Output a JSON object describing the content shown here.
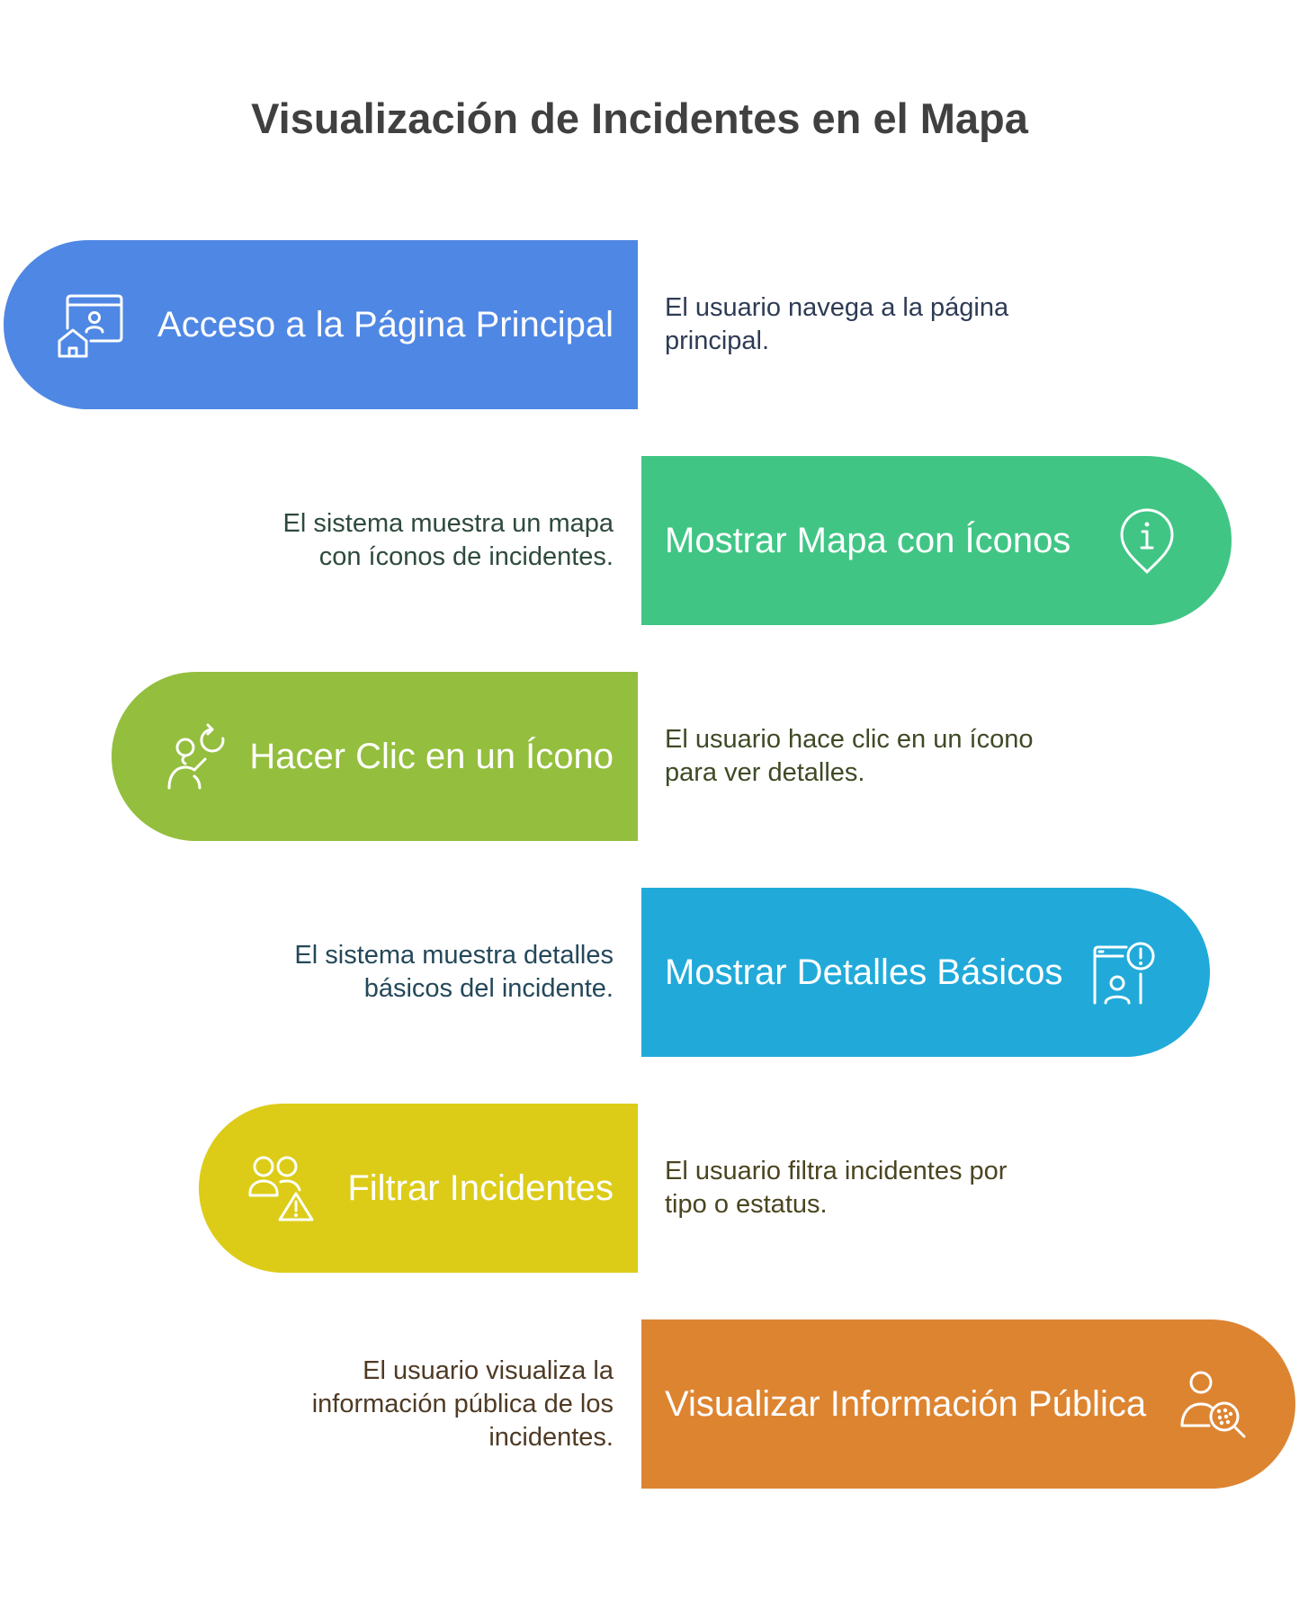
{
  "title": "Visualización de Incidentes en el Mapa",
  "steps": [
    {
      "label": "Acceso a la Página Principal",
      "description_lines": [
        "El usuario navega a la página",
        "principal."
      ],
      "icon": "browser-user-home-icon",
      "color": "#4F87E4",
      "text_color": "#2E3B55"
    },
    {
      "label": "Mostrar Mapa con Íconos",
      "description_lines": [
        "El sistema muestra un mapa",
        "con íconos de incidentes."
      ],
      "icon": "map-pin-info-icon",
      "color": "#40C585",
      "text_color": "#2E4A3C"
    },
    {
      "label": "Hacer Clic en un Ícono",
      "description_lines": [
        "El usuario hace clic en un ícono",
        "para ver detalles."
      ],
      "icon": "user-click-refresh-icon",
      "color": "#94BE3D",
      "text_color": "#3E4A25"
    },
    {
      "label": "Mostrar Detalles Básicos",
      "description_lines": [
        "El sistema muestra detalles",
        "básicos del incidente."
      ],
      "icon": "user-document-alert-icon",
      "color": "#21AAD9",
      "text_color": "#24485A"
    },
    {
      "label": "Filtrar Incidentes",
      "description_lines": [
        "El usuario filtra incidentes por",
        "tipo o estatus."
      ],
      "icon": "users-warning-icon",
      "color": "#DCCC18",
      "text_color": "#4A4520"
    },
    {
      "label": "Visualizar Información Pública",
      "description_lines": [
        "El usuario visualiza la",
        "información pública de los",
        "incidentes."
      ],
      "icon": "user-search-icon",
      "color": "#DD8431",
      "text_color": "#4F3A24"
    }
  ]
}
